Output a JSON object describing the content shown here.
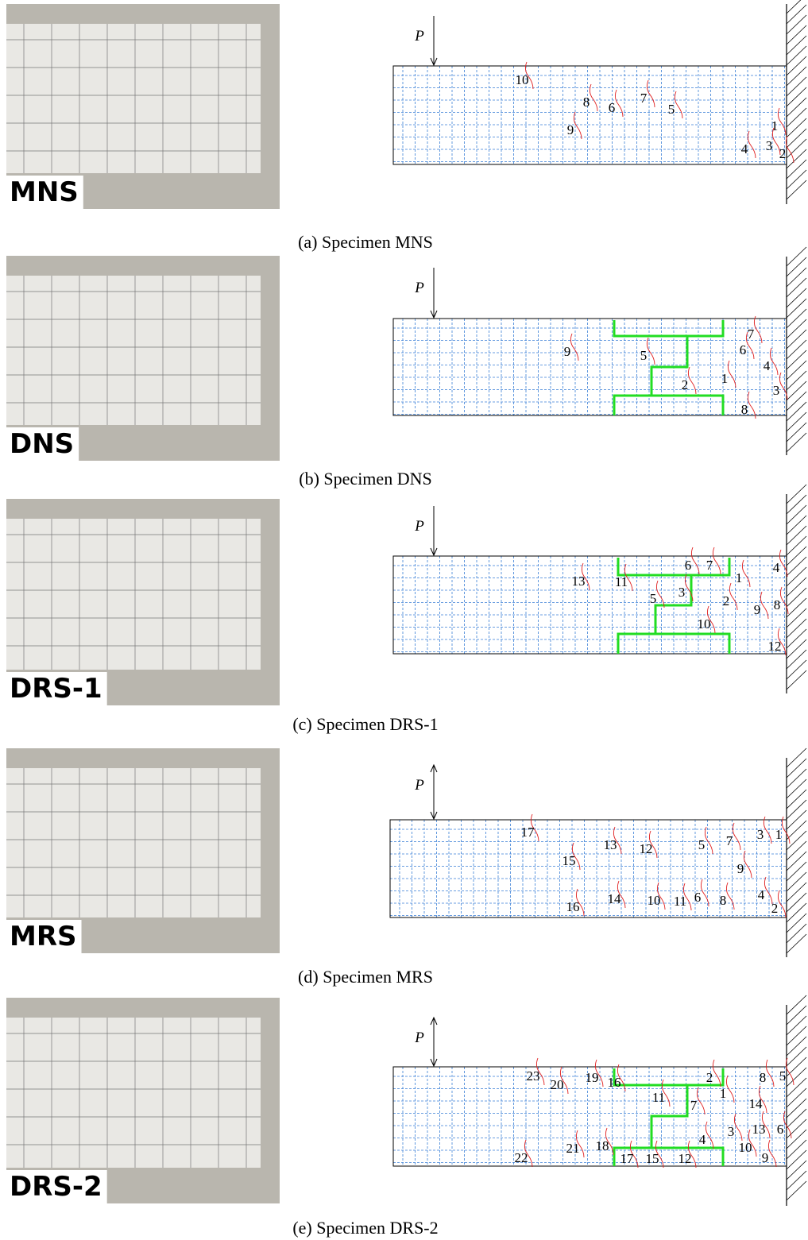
{
  "panels": [
    {
      "photo_label": "MNS",
      "load_label": "P",
      "caption": "(a) Specimen MNS",
      "crack_labels": [
        "10",
        "8",
        "6",
        "7",
        "5",
        "9",
        "1",
        "4",
        "3",
        "2"
      ]
    },
    {
      "photo_label": "DNS",
      "load_label": "P",
      "caption": "(b) Specimen DNS",
      "crack_labels": [
        "9",
        "5",
        "7",
        "6",
        "1",
        "4",
        "2",
        "3",
        "8"
      ]
    },
    {
      "photo_label": "DRS-1",
      "load_label": "P",
      "caption": "(c) Specimen DRS-1",
      "crack_labels": [
        "13",
        "11",
        "6",
        "7",
        "3",
        "5",
        "1",
        "4",
        "2",
        "9",
        "8",
        "10",
        "12"
      ]
    },
    {
      "photo_label": "MRS",
      "load_label": "P",
      "caption": "(d) Specimen MRS",
      "crack_labels": [
        "17",
        "13",
        "12",
        "5",
        "7",
        "3",
        "1",
        "15",
        "9",
        "16",
        "14",
        "10",
        "11",
        "6",
        "8",
        "4",
        "2"
      ]
    },
    {
      "photo_label": "DRS-2",
      "load_label": "P",
      "caption": "(e) Specimen DRS-2",
      "crack_labels": [
        "23",
        "20",
        "19",
        "16",
        "2",
        "8",
        "5",
        "11",
        "1",
        "7",
        "14",
        "3",
        "13",
        "6",
        "10",
        "4",
        "22",
        "21",
        "18",
        "17",
        "15",
        "12",
        "9"
      ]
    }
  ]
}
